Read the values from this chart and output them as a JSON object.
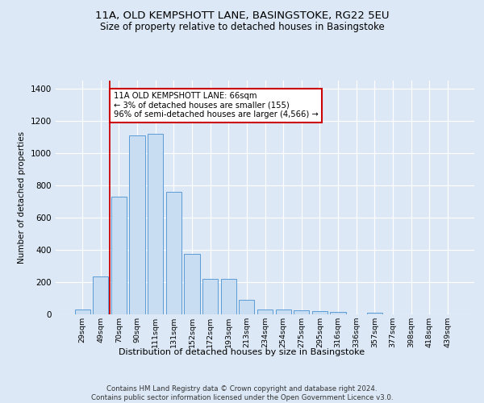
{
  "title_line1": "11A, OLD KEMPSHOTT LANE, BASINGSTOKE, RG22 5EU",
  "title_line2": "Size of property relative to detached houses in Basingstoke",
  "xlabel": "Distribution of detached houses by size in Basingstoke",
  "ylabel": "Number of detached properties",
  "footnote": "Contains HM Land Registry data © Crown copyright and database right 2024.\nContains public sector information licensed under the Open Government Licence v3.0.",
  "bar_labels": [
    "29sqm",
    "49sqm",
    "70sqm",
    "90sqm",
    "111sqm",
    "131sqm",
    "152sqm",
    "172sqm",
    "193sqm",
    "213sqm",
    "234sqm",
    "254sqm",
    "275sqm",
    "295sqm",
    "316sqm",
    "336sqm",
    "357sqm",
    "377sqm",
    "398sqm",
    "418sqm",
    "439sqm"
  ],
  "bar_values": [
    30,
    235,
    730,
    1110,
    1120,
    760,
    375,
    220,
    220,
    90,
    30,
    30,
    25,
    20,
    14,
    0,
    10,
    0,
    0,
    0,
    0
  ],
  "bar_color": "#c9ddf2",
  "bar_edge_color": "#5b9bd5",
  "vline_x": 1.5,
  "vline_color": "#cc0000",
  "annotation_text": "11A OLD KEMPSHOTT LANE: 66sqm\n← 3% of detached houses are smaller (155)\n96% of semi-detached houses are larger (4,566) →",
  "annotation_box_color": "#ffffff",
  "annotation_box_edge": "#cc0000",
  "ylim": [
    0,
    1450
  ],
  "background_color": "#dce8f5",
  "plot_background": "#dce8f5",
  "title1_fontsize": 9.5,
  "title2_fontsize": 8.5
}
